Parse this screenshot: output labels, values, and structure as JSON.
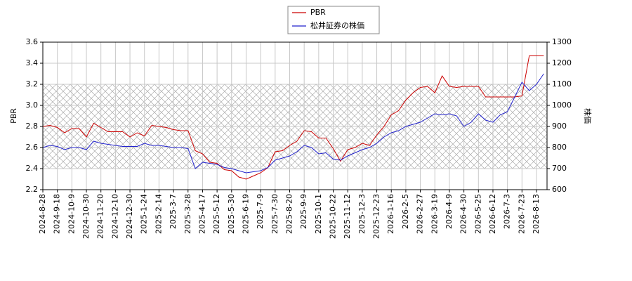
{
  "chart_data": {
    "type": "line",
    "categories": [
      "2024-8-28",
      null,
      "2024-9-18",
      null,
      "2024-10-9",
      null,
      "2024-10-30",
      null,
      "2024-11-20",
      null,
      "2024-12-10",
      null,
      "2024-12-30",
      null,
      "2025-1-24",
      null,
      "2025-2-14",
      null,
      "2025-3-7",
      null,
      "2025-3-28",
      null,
      "2025-4-17",
      null,
      "2025-5-12",
      null,
      "2025-5-30",
      null,
      "2025-6-19",
      null,
      "2025-7-9",
      null,
      "2025-7-30",
      null,
      "2025-8-20",
      null,
      "2025-9-9",
      null,
      "2025-10-1",
      null,
      "2025-10-22",
      null,
      "2025-11-12",
      null,
      "2025-12-3",
      null,
      "2025-12-23",
      null,
      "2026-1-16",
      null,
      "2026-2-5",
      null,
      "2026-2-27",
      null,
      "2026-3-19",
      null,
      "2026-4-9",
      null,
      "2026-4-30",
      null,
      "2026-5-25",
      null,
      "2026-6-12",
      null,
      "2026-7-3",
      null,
      "2026-7-23",
      null,
      "2026-8-13",
      null
    ],
    "series": [
      {
        "name": "PBR",
        "color": "#cc0000",
        "axis": "y",
        "values": [
          2.8,
          2.81,
          2.79,
          2.74,
          2.78,
          2.78,
          2.7,
          2.83,
          2.79,
          2.75,
          2.75,
          2.75,
          2.7,
          2.74,
          2.71,
          2.81,
          2.8,
          2.79,
          2.77,
          2.76,
          2.76,
          2.57,
          2.54,
          2.46,
          2.45,
          2.39,
          2.38,
          2.32,
          2.3,
          2.33,
          2.36,
          2.41,
          2.56,
          2.57,
          2.62,
          2.66,
          2.76,
          2.75,
          2.69,
          2.69,
          2.59,
          2.47,
          2.58,
          2.6,
          2.64,
          2.62,
          2.72,
          2.8,
          2.91,
          2.95,
          3.05,
          3.12,
          3.17,
          3.18,
          3.12,
          3.28,
          3.18,
          3.17,
          3.18,
          3.18,
          3.18,
          3.08,
          3.08,
          3.08,
          3.08,
          3.08,
          3.09,
          3.47,
          3.47,
          3.47
        ]
      },
      {
        "name": "松井証券の株価",
        "color": "#2222cc",
        "axis": "y2",
        "values": [
          800,
          810,
          805,
          790,
          800,
          800,
          790,
          830,
          820,
          815,
          810,
          805,
          805,
          805,
          820,
          810,
          810,
          805,
          800,
          800,
          795,
          700,
          730,
          725,
          720,
          705,
          700,
          690,
          680,
          685,
          690,
          705,
          740,
          750,
          760,
          780,
          810,
          800,
          770,
          775,
          745,
          740,
          760,
          775,
          790,
          800,
          820,
          850,
          870,
          880,
          900,
          910,
          920,
          940,
          960,
          955,
          960,
          950,
          900,
          920,
          960,
          930,
          920,
          955,
          970,
          1040,
          1110,
          1070,
          1100,
          1150
        ]
      }
    ],
    "ylabel": "PBR",
    "y2label": "株価",
    "ylim": [
      2.2,
      3.6
    ],
    "yticks": [
      2.2,
      2.4,
      2.6,
      2.8,
      {
        "value": 3,
        "label": "3.0"
      },
      3.2,
      3.4,
      3.6
    ],
    "y2lim": [
      600,
      1300
    ],
    "y2ticks": [
      600,
      700,
      800,
      900,
      1000,
      1100,
      1200,
      1300
    ],
    "band": [
      2.4,
      3.2
    ],
    "grid": true,
    "legend": "top"
  }
}
